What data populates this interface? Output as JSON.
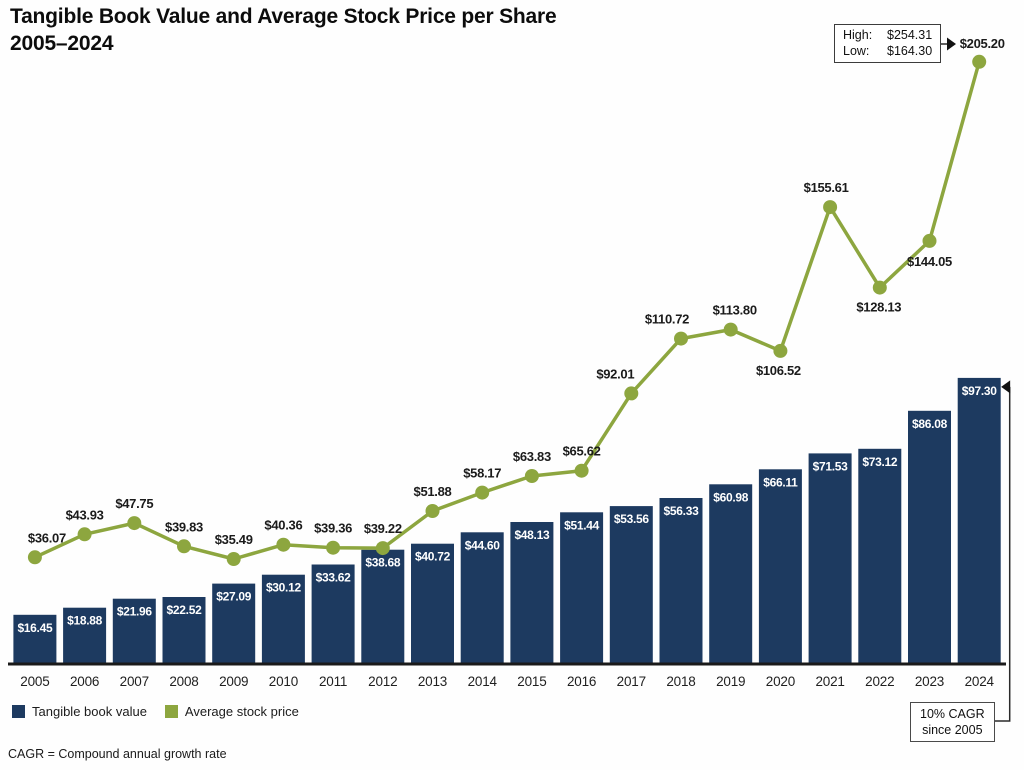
{
  "title": {
    "line1": "Tangible Book Value and Average Stock Price per Share",
    "line2": "2005–2024"
  },
  "legend": [
    {
      "label": "Tangible book value",
      "color": "#1d3a60"
    },
    {
      "label": "Average stock price",
      "color": "#8da63f"
    }
  ],
  "footnote": "CAGR = Compound annual growth rate",
  "annotations": {
    "high_low": {
      "high_label": "High:",
      "high_value": "$254.31",
      "low_label": "Low:",
      "low_value": "$164.30"
    },
    "cagr": {
      "line1": "10% CAGR",
      "line2": "since 2005"
    }
  },
  "chart_data": {
    "type": "bar+line",
    "title": "Tangible Book Value and Average Stock Price per Share 2005–2024",
    "categories": [
      "2005",
      "2006",
      "2007",
      "2008",
      "2009",
      "2010",
      "2011",
      "2012",
      "2013",
      "2014",
      "2015",
      "2016",
      "2017",
      "2018",
      "2019",
      "2020",
      "2021",
      "2022",
      "2023",
      "2024"
    ],
    "series": [
      {
        "name": "Tangible book value",
        "type": "bar",
        "color": "#1d3a60",
        "values": [
          16.45,
          18.88,
          21.96,
          22.52,
          27.09,
          30.12,
          33.62,
          38.68,
          40.72,
          44.6,
          48.13,
          51.44,
          53.56,
          56.33,
          60.98,
          66.11,
          71.53,
          73.12,
          86.08,
          97.3
        ]
      },
      {
        "name": "Average stock price",
        "type": "line",
        "color": "#8da63f",
        "values": [
          36.07,
          43.93,
          47.75,
          39.83,
          35.49,
          40.36,
          39.36,
          39.22,
          51.88,
          58.17,
          63.83,
          65.62,
          92.01,
          110.72,
          113.8,
          106.52,
          155.61,
          128.13,
          144.05,
          205.2
        ]
      }
    ],
    "stock_price_high": 254.31,
    "stock_price_low": 164.3,
    "cagr_note": "10% CAGR since 2005",
    "value_prefix": "$",
    "ylim": [
      0,
      220
    ],
    "grid": false,
    "legend_position": "bottom-left"
  }
}
